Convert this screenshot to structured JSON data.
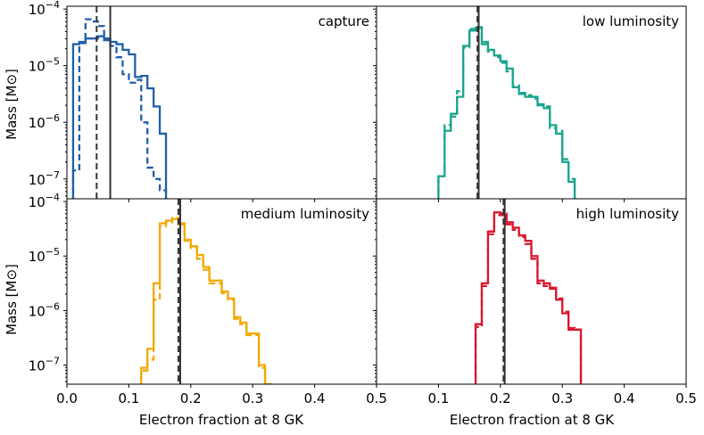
{
  "figure": {
    "x_axis_label": "Electron fraction at 8 GK",
    "y_axis_label": "Mass [M⊙]"
  },
  "chart_data": [
    {
      "type": "step-histogram",
      "title": "capture",
      "color": "#1f5fa8",
      "xlim": [
        0.0,
        0.5
      ],
      "ylim_log10": [
        -7.35,
        -3.95
      ],
      "bin_edges": [
        0.01,
        0.02,
        0.03,
        0.04,
        0.05,
        0.06,
        0.07,
        0.08,
        0.09,
        0.1,
        0.11,
        0.12,
        0.13,
        0.14,
        0.15,
        0.16
      ],
      "series": [
        {
          "name": "solid",
          "style": "solid",
          "log10_values": [
            -4.62,
            -4.58,
            -4.52,
            -4.52,
            -4.48,
            -4.52,
            -4.58,
            -4.62,
            -4.72,
            -4.8,
            -5.2,
            -5.18,
            -5.4,
            -5.72,
            -6.2
          ]
        },
        {
          "name": "dashed",
          "style": "dashed",
          "log10_values": [
            -6.85,
            -4.6,
            -4.18,
            -4.22,
            -4.3,
            -4.55,
            -4.65,
            -4.85,
            -5.15,
            -5.3,
            -5.25,
            -6.0,
            -6.8,
            -7.0,
            -7.2
          ]
        },
        {
          "name": "ye-solid",
          "style": "vline-solid",
          "x": 0.07
        },
        {
          "name": "ye-dashed",
          "style": "vline-dashed",
          "x": 0.048
        }
      ]
    },
    {
      "type": "step-histogram",
      "title": "low luminosity",
      "color": "#1aa58c",
      "xlim": [
        0.0,
        0.5
      ],
      "ylim_log10": [
        -7.35,
        -3.95
      ],
      "bin_edges": [
        0.1,
        0.11,
        0.12,
        0.13,
        0.14,
        0.15,
        0.16,
        0.17,
        0.18,
        0.19,
        0.2,
        0.21,
        0.22,
        0.23,
        0.24,
        0.25,
        0.26,
        0.27,
        0.28,
        0.29,
        0.3,
        0.31,
        0.32
      ],
      "series": [
        {
          "name": "solid",
          "style": "solid",
          "log10_values": [
            -6.95,
            -6.15,
            -5.85,
            -5.55,
            -4.65,
            -4.38,
            -4.33,
            -4.62,
            -4.72,
            -4.82,
            -4.92,
            -5.05,
            -5.38,
            -5.5,
            -5.55,
            -5.55,
            -5.7,
            -5.75,
            -6.05,
            -6.2,
            -6.7,
            -7.05
          ]
        },
        {
          "name": "dashed",
          "style": "dashed",
          "log10_values": [
            -6.95,
            -6.05,
            -5.9,
            -5.45,
            -4.68,
            -4.35,
            -4.32,
            -4.58,
            -4.75,
            -4.85,
            -4.95,
            -5.1,
            -5.35,
            -5.48,
            -5.52,
            -5.58,
            -5.68,
            -5.72,
            -6.1,
            -6.15,
            -6.65,
            -7.0
          ]
        },
        {
          "name": "ye-solid",
          "style": "vline-solid",
          "x": 0.165
        },
        {
          "name": "ye-dashed",
          "style": "vline-dashed",
          "x": 0.163
        }
      ]
    },
    {
      "type": "step-histogram",
      "title": "medium luminosity",
      "color": "#f2a900",
      "xlim": [
        0.0,
        0.5
      ],
      "ylim_log10": [
        -7.35,
        -3.95
      ],
      "bin_edges": [
        0.12,
        0.13,
        0.14,
        0.15,
        0.16,
        0.17,
        0.18,
        0.19,
        0.2,
        0.21,
        0.22,
        0.23,
        0.24,
        0.25,
        0.26,
        0.27,
        0.28,
        0.29,
        0.3,
        0.31,
        0.32,
        0.33
      ],
      "series": [
        {
          "name": "solid",
          "style": "solid",
          "log10_values": [
            -7.05,
            -6.7,
            -5.5,
            -4.4,
            -4.35,
            -4.32,
            -4.42,
            -4.7,
            -4.82,
            -4.98,
            -5.2,
            -5.45,
            -5.45,
            -5.65,
            -5.78,
            -6.12,
            -6.22,
            -6.42,
            -6.42,
            -7.0,
            -7.35
          ]
        },
        {
          "name": "dashed",
          "style": "dashed",
          "log10_values": [
            -7.1,
            -6.9,
            -5.8,
            -4.45,
            -4.38,
            -4.3,
            -4.4,
            -4.72,
            -4.85,
            -5.05,
            -5.25,
            -5.5,
            -5.5,
            -5.68,
            -5.8,
            -6.15,
            -6.25,
            -6.45,
            -6.45,
            -7.05,
            -7.35
          ]
        },
        {
          "name": "ye-solid",
          "style": "vline-solid",
          "x": 0.183
        },
        {
          "name": "ye-dashed",
          "style": "vline-dashed",
          "x": 0.18
        }
      ]
    },
    {
      "type": "step-histogram",
      "title": "high luminosity",
      "color": "#d7192f",
      "xlim": [
        0.0,
        0.5
      ],
      "ylim_log10": [
        -7.35,
        -3.95
      ],
      "bin_edges": [
        0.16,
        0.17,
        0.18,
        0.19,
        0.2,
        0.21,
        0.22,
        0.23,
        0.24,
        0.25,
        0.26,
        0.27,
        0.28,
        0.29,
        0.3,
        0.31,
        0.32,
        0.33
      ],
      "series": [
        {
          "name": "solid",
          "style": "solid",
          "log10_values": [
            -6.25,
            -5.5,
            -4.55,
            -4.2,
            -4.25,
            -4.38,
            -4.48,
            -4.62,
            -4.72,
            -5.0,
            -5.45,
            -5.5,
            -5.6,
            -5.8,
            -6.05,
            -6.35,
            -6.35
          ]
        },
        {
          "name": "dashed",
          "style": "dashed",
          "log10_values": [
            -6.3,
            -5.55,
            -4.6,
            -4.25,
            -4.22,
            -4.42,
            -4.52,
            -4.65,
            -4.78,
            -5.05,
            -5.5,
            -5.55,
            -5.58,
            -5.78,
            -6.02,
            -6.32,
            -6.35
          ]
        },
        {
          "name": "ye-solid",
          "style": "vline-solid",
          "x": 0.207
        },
        {
          "name": "ye-dashed",
          "style": "vline-dashed",
          "x": 0.205
        }
      ]
    }
  ],
  "axes": {
    "x_ticks": [
      "0.0",
      "0.1",
      "0.2",
      "0.3",
      "0.4",
      "0.5"
    ],
    "y_ticks": [
      {
        "base": "10",
        "exp": "−4",
        "log10": -4
      },
      {
        "base": "10",
        "exp": "−5",
        "log10": -5
      },
      {
        "base": "10",
        "exp": "−6",
        "log10": -6
      },
      {
        "base": "10",
        "exp": "−7",
        "log10": -7
      }
    ]
  }
}
